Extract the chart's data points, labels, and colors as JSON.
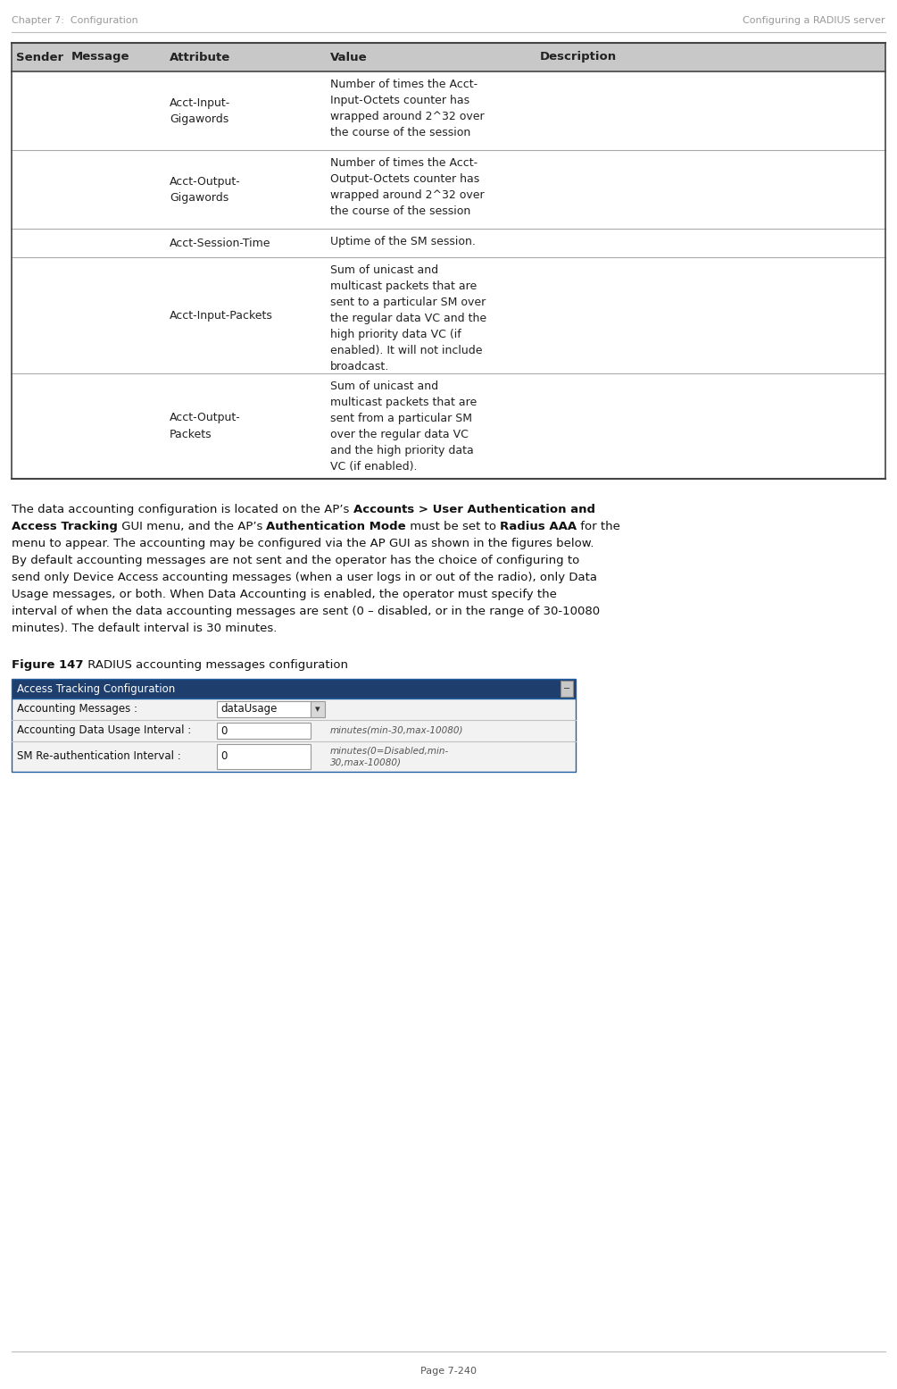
{
  "page_header_left": "Chapter 7:  Configuration",
  "page_header_right": "Configuring a RADIUS server",
  "page_footer": "Page 7-240",
  "table_header": [
    "Sender",
    "Message",
    "Attribute",
    "Value",
    "Description"
  ],
  "table_header_bg": "#c8c8c8",
  "table_rows": [
    {
      "attribute": "Acct-Input-\nGigawords",
      "value": "Number of times the Acct-\nInput-Octets counter has\nwrapped around 2^32 over\nthe course of the session",
      "description": ""
    },
    {
      "attribute": "Acct-Output-\nGigawords",
      "value": "Number of times the Acct-\nOutput-Octets counter has\nwrapped around 2^32 over\nthe course of the session",
      "description": ""
    },
    {
      "attribute": "Acct-Session-Time",
      "value": "Uptime of the SM session.",
      "description": ""
    },
    {
      "attribute": "Acct-Input-Packets",
      "value": "Sum of unicast and\nmulticast packets that are\nsent to a particular SM over\nthe regular data VC and the\nhigh priority data VC (if\nenabled). It will not include\nbroadcast.",
      "description": ""
    },
    {
      "attribute": "Acct-Output-\nPackets",
      "value": "Sum of unicast and\nmulticast packets that are\nsent from a particular SM\nover the regular data VC\nand the high priority data\nVC (if enabled).",
      "description": ""
    }
  ],
  "body_lines": [
    [
      [
        "The data accounting configuration is located on the AP’s ",
        false
      ],
      [
        "Accounts > User Authentication and",
        true
      ]
    ],
    [
      [
        "Access Tracking",
        true
      ],
      [
        " GUI menu, and the AP’s ",
        false
      ],
      [
        "Authentication Mode",
        true
      ],
      [
        " must be set to ",
        false
      ],
      [
        "Radius AAA",
        true
      ],
      [
        " for the",
        false
      ]
    ],
    [
      [
        "menu to appear. The accounting may be configured via the AP GUI as shown in the figures below.",
        false
      ]
    ],
    [
      [
        "By default accounting messages are not sent and the operator has the choice of configuring to",
        false
      ]
    ],
    [
      [
        "send only Device Access accounting messages (when a user logs in or out of the radio), only Data",
        false
      ]
    ],
    [
      [
        "Usage messages, or both. When Data Accounting is enabled, the operator must specify the",
        false
      ]
    ],
    [
      [
        "interval of when the data accounting messages are sent (0 – disabled, or in the range of 30-10080",
        false
      ]
    ],
    [
      [
        "minutes). The default interval is 30 minutes.",
        false
      ]
    ]
  ],
  "figure_caption_bold": "Figure 147",
  "figure_caption_rest": " RADIUS accounting messages configuration",
  "screenshot_title": "Access Tracking Configuration",
  "screenshot_title_bg": "#1e3f6e",
  "screenshot_title_color": "#ffffff",
  "screenshot_border": "#2060a0",
  "screenshot_rows": [
    {
      "label": "Accounting Messages :",
      "value": "dataUsage",
      "has_dropdown": true,
      "extra": ""
    },
    {
      "label": "Accounting Data Usage Interval :",
      "value": "0",
      "has_dropdown": false,
      "extra": "minutes(min-30,max-10080)"
    },
    {
      "label": "SM Re-authentication Interval :",
      "value": "0",
      "has_dropdown": false,
      "extra": "minutes(0=Disabled,min-\n30,max-10080)"
    }
  ],
  "header_font_size": 8.0,
  "table_header_font_size": 9.5,
  "table_body_font_size": 9.0,
  "body_font_size": 9.5,
  "caption_font_size": 9.5,
  "screenshot_font_size": 8.5
}
